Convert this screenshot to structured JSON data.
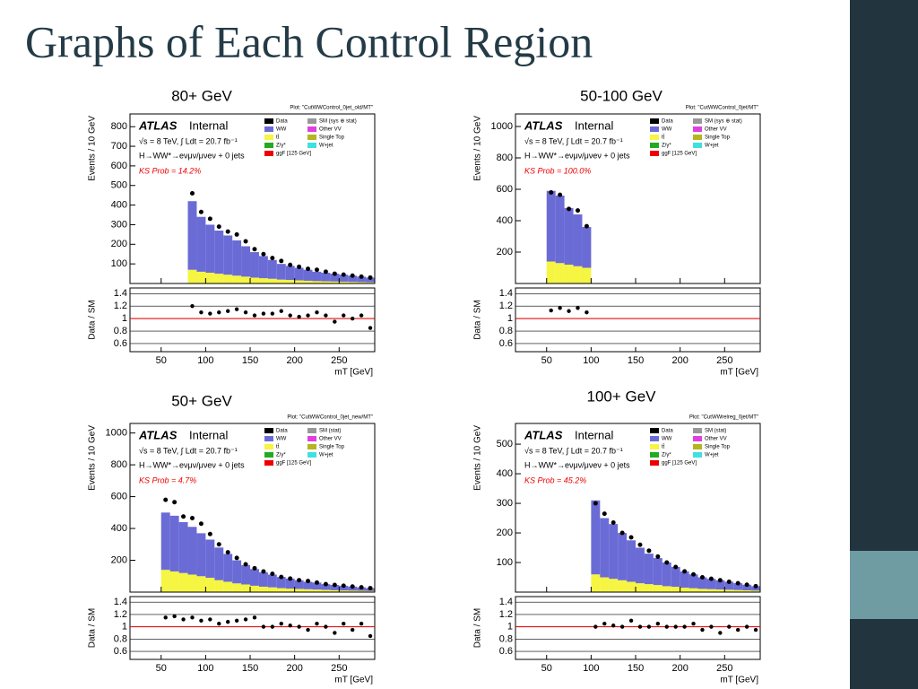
{
  "title": "Graphs of Each Control Region",
  "chart_data": [
    {
      "type": "histogram",
      "panel_label": "80+ GeV",
      "plot_title": "Plot: \"CutWWControl_0jet_old/MT\"",
      "experiment": "ATLAS",
      "status": "Internal",
      "energy": "√s = 8 TeV, ∫ Ldt = 20.7 fb⁻¹",
      "channel": "H→WW*→eνμν/μνeν + 0 jets",
      "ks": "KS Prob = 14.2%",
      "ylabel": "Events / 10 GeV",
      "ratio_ylabel": "Data / SM",
      "xlabel": "mT [GeV]",
      "legend": [
        "Data",
        "SM (sys ⊕ stat)",
        "WW",
        "Other VV",
        "tt̄",
        "Single Top",
        "Z/γ*",
        "W+jet",
        "ggF [125 GeV]"
      ],
      "legend_colors": [
        "#000000",
        "#999999",
        "#6b6bd6",
        "#e040e0",
        "#f5f542",
        "#b5b520",
        "#22aa22",
        "#40e0e0",
        "#ee0000"
      ],
      "xlim": [
        15,
        290
      ],
      "xticks": [
        50,
        100,
        150,
        200,
        250
      ],
      "ylim": [
        0,
        865
      ],
      "yticks": [
        100,
        200,
        300,
        400,
        500,
        600,
        700,
        800
      ],
      "ratio_ylim": [
        0.47,
        1.49
      ],
      "ratio_yticks": [
        0.6,
        0.8,
        1,
        1.2,
        1.4
      ],
      "ratio_reference": 1,
      "bins": [
        80,
        90,
        100,
        110,
        120,
        130,
        140,
        150,
        160,
        170,
        180,
        190,
        200,
        210,
        220,
        230,
        240,
        250,
        260,
        270,
        280,
        290
      ],
      "series": [
        {
          "name": "tt̄",
          "color": "#f5f542",
          "values": [
            70,
            60,
            55,
            50,
            45,
            40,
            35,
            30,
            27,
            24,
            20,
            18,
            16,
            14,
            12,
            11,
            10,
            9,
            8,
            7,
            6
          ]
        },
        {
          "name": "WW",
          "color": "#6b6bd6",
          "values": [
            350,
            280,
            245,
            220,
            200,
            180,
            155,
            130,
            113,
            96,
            80,
            72,
            64,
            56,
            48,
            44,
            40,
            36,
            32,
            28,
            24
          ]
        }
      ],
      "data": [
        460,
        365,
        330,
        290,
        265,
        250,
        215,
        175,
        150,
        130,
        115,
        95,
        85,
        75,
        70,
        60,
        50,
        45,
        40,
        35,
        30
      ],
      "ratio": [
        1.2,
        1.1,
        1.08,
        1.1,
        1.12,
        1.15,
        1.1,
        1.05,
        1.08,
        1.08,
        1.12,
        1.05,
        1.03,
        1.05,
        1.1,
        1.05,
        0.95,
        1.05,
        1.0,
        1.05,
        0.85
      ]
    },
    {
      "type": "histogram",
      "panel_label": "50-100 GeV",
      "plot_title": "Plot: \"CutWWControl_0jet/MT\"",
      "experiment": "ATLAS",
      "status": "Internal",
      "energy": "√s = 8 TeV, ∫ Ldt = 20.7 fb⁻¹",
      "channel": "H→WW*→eνμν/μνeν + 0 jets",
      "ks": "KS Prob = 100.0%",
      "ylabel": "Events / 10 GeV",
      "ratio_ylabel": "Data / SM",
      "xlabel": "mT [GeV]",
      "legend": [
        "Data",
        "SM (sys ⊕ stat)",
        "WW",
        "Other VV",
        "tt̄",
        "Single Top",
        "Z/γ*",
        "W+jet",
        "ggF [125 GeV]"
      ],
      "legend_colors": [
        "#000000",
        "#999999",
        "#6b6bd6",
        "#e040e0",
        "#f5f542",
        "#b5b520",
        "#22aa22",
        "#40e0e0",
        "#ee0000"
      ],
      "xlim": [
        15,
        290
      ],
      "xticks": [
        50,
        100,
        150,
        200,
        250
      ],
      "ylim": [
        0,
        1080
      ],
      "yticks": [
        200,
        400,
        600,
        800,
        1000
      ],
      "ratio_ylim": [
        0.47,
        1.49
      ],
      "ratio_yticks": [
        0.6,
        0.8,
        1,
        1.2,
        1.4
      ],
      "ratio_reference": 1,
      "bins": [
        50,
        60,
        70,
        80,
        90,
        100
      ],
      "series": [
        {
          "name": "tt̄",
          "color": "#f5f542",
          "values": [
            140,
            130,
            120,
            110,
            100
          ]
        },
        {
          "name": "WW",
          "color": "#6b6bd6",
          "values": [
            450,
            430,
            360,
            330,
            260
          ]
        }
      ],
      "data": [
        580,
        565,
        475,
        465,
        365
      ],
      "ratio": [
        1.13,
        1.17,
        1.12,
        1.17,
        1.1
      ]
    },
    {
      "type": "histogram",
      "panel_label": "50+ GeV",
      "plot_title": "Plot: \"CutWWControl_0jet_new/MT\"",
      "experiment": "ATLAS",
      "status": "Internal",
      "energy": "√s = 8 TeV, ∫ Ldt = 20.7 fb⁻¹",
      "channel": "H→WW*→eνμν/μνeν + 0 jets",
      "ks": "KS Prob = 4.7%",
      "ylabel": "Events / 10 GeV",
      "ratio_ylabel": "Data / SM",
      "xlabel": "mT [GeV]",
      "legend": [
        "Data",
        "SM (stat)",
        "WW",
        "Other VV",
        "tt̄",
        "Single Top",
        "Z/γ*",
        "W+jet",
        "ggF [125 GeV]"
      ],
      "legend_colors": [
        "#000000",
        "#999999",
        "#6b6bd6",
        "#e040e0",
        "#f5f542",
        "#b5b520",
        "#22aa22",
        "#40e0e0",
        "#ee0000"
      ],
      "xlim": [
        15,
        290
      ],
      "xticks": [
        50,
        100,
        150,
        200,
        250
      ],
      "ylim": [
        0,
        1060
      ],
      "yticks": [
        200,
        400,
        600,
        800,
        1000
      ],
      "ratio_ylim": [
        0.47,
        1.49
      ],
      "ratio_yticks": [
        0.6,
        0.8,
        1,
        1.2,
        1.4
      ],
      "ratio_reference": 1,
      "bins": [
        50,
        60,
        70,
        80,
        90,
        100,
        110,
        120,
        130,
        140,
        150,
        160,
        170,
        180,
        190,
        200,
        210,
        220,
        230,
        240,
        250,
        260,
        270,
        280,
        290
      ],
      "series": [
        {
          "name": "tt̄",
          "color": "#f5f542",
          "values": [
            140,
            130,
            120,
            110,
            100,
            90,
            75,
            65,
            55,
            48,
            40,
            34,
            30,
            25,
            22,
            20,
            18,
            16,
            14,
            12,
            10,
            9,
            8,
            7
          ]
        },
        {
          "name": "WW",
          "color": "#6b6bd6",
          "values": [
            360,
            350,
            320,
            300,
            270,
            240,
            205,
            175,
            145,
            122,
            105,
            91,
            80,
            70,
            63,
            55,
            47,
            44,
            36,
            33,
            30,
            26,
            22,
            18
          ]
        }
      ],
      "data": [
        580,
        565,
        475,
        465,
        430,
        365,
        300,
        250,
        215,
        175,
        150,
        130,
        115,
        95,
        85,
        75,
        70,
        60,
        50,
        45,
        40,
        35,
        30,
        25
      ],
      "ratio": [
        1.15,
        1.17,
        1.12,
        1.15,
        1.1,
        1.12,
        1.05,
        1.08,
        1.1,
        1.12,
        1.15,
        1.0,
        1.0,
        1.05,
        1.02,
        1.0,
        0.95,
        1.05,
        1.0,
        0.9,
        1.05,
        0.95,
        1.05,
        0.85
      ]
    },
    {
      "type": "histogram",
      "panel_label": "100+ GeV",
      "plot_title": "Plot: \"CutWWrelreg_0jet/MT\"",
      "experiment": "ATLAS",
      "status": "Internal",
      "energy": "√s = 8 TeV, ∫ Ldt = 20.7 fb⁻¹",
      "channel": "H→WW*→eνμν/μνeν + 0 jets",
      "ks": "KS Prob = 45.2%",
      "ylabel": "Events / 10 GeV",
      "ratio_ylabel": "Data / SM",
      "xlabel": "mT [GeV]",
      "legend": [
        "Data",
        "SM (stat)",
        "WW",
        "Other VV",
        "tt̄",
        "Single Top",
        "Z/γ*",
        "W+jet",
        "ggF [125 GeV]"
      ],
      "legend_colors": [
        "#000000",
        "#999999",
        "#6b6bd6",
        "#e040e0",
        "#f5f542",
        "#b5b520",
        "#22aa22",
        "#40e0e0",
        "#ee0000"
      ],
      "xlim": [
        15,
        290
      ],
      "xticks": [
        50,
        100,
        150,
        200,
        250
      ],
      "ylim": [
        0,
        570
      ],
      "yticks": [
        100,
        200,
        300,
        400,
        500
      ],
      "ratio_ylim": [
        0.47,
        1.49
      ],
      "ratio_yticks": [
        0.6,
        0.8,
        1,
        1.2,
        1.4
      ],
      "ratio_reference": 1,
      "bins": [
        100,
        110,
        120,
        130,
        140,
        150,
        160,
        170,
        180,
        190,
        200,
        210,
        220,
        230,
        240,
        250,
        260,
        270,
        280,
        290
      ],
      "series": [
        {
          "name": "tt̄",
          "color": "#f5f542",
          "values": [
            60,
            50,
            45,
            40,
            35,
            30,
            27,
            24,
            20,
            18,
            15,
            13,
            11,
            10,
            9,
            8,
            7,
            6,
            5
          ]
        },
        {
          "name": "WW",
          "color": "#6b6bd6",
          "values": [
            250,
            200,
            185,
            160,
            140,
            120,
            103,
            91,
            80,
            67,
            55,
            47,
            39,
            35,
            31,
            27,
            23,
            19,
            15
          ]
        }
      ],
      "data": [
        300,
        265,
        235,
        200,
        185,
        160,
        140,
        120,
        100,
        85,
        70,
        60,
        50,
        45,
        40,
        35,
        30,
        25,
        20
      ],
      "ratio": [
        1.0,
        1.05,
        1.02,
        1.0,
        1.1,
        1.0,
        1.0,
        1.05,
        1.0,
        1.0,
        1.0,
        1.05,
        0.95,
        1.0,
        0.9,
        1.0,
        0.95,
        1.0,
        0.95
      ]
    }
  ]
}
